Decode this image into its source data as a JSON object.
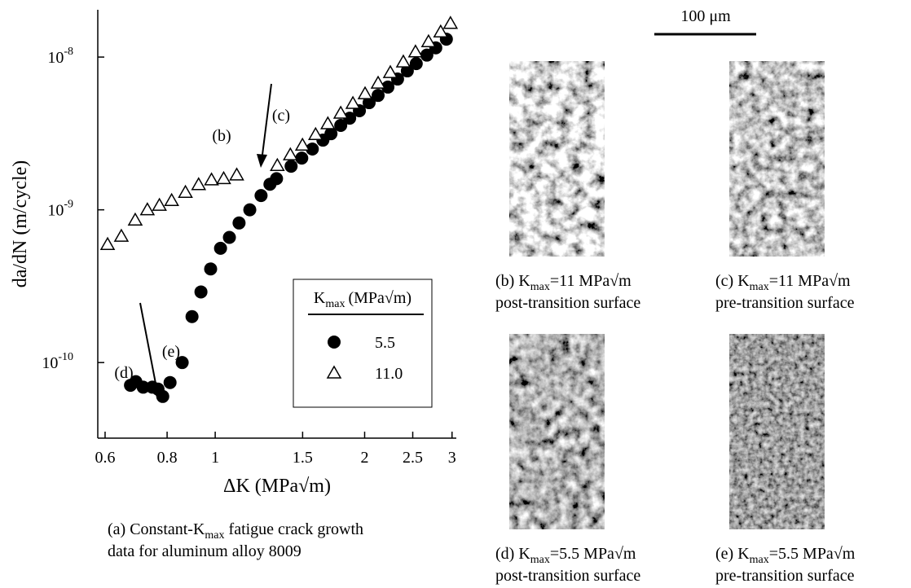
{
  "chart_data": {
    "type": "scatter",
    "xlabel": "ΔK (MPa√m)",
    "ylabel": "da/dN (m/cycle)",
    "xscale": "log",
    "yscale": "log",
    "xlim": [
      0.58,
      3.06
    ],
    "ylim": [
      3.2e-11,
      2.04e-08
    ],
    "xticks": [
      0.6,
      0.8,
      1,
      1.5,
      2,
      2.5,
      3
    ],
    "yticks": [
      {
        "value": 1e-10,
        "label": "10",
        "exponent": "-10"
      },
      {
        "value": 1e-09,
        "label": "10",
        "exponent": "-9"
      },
      {
        "value": 1e-08,
        "label": "10",
        "exponent": "-8"
      }
    ],
    "legend": {
      "title": {
        "main": "K",
        "sub": "max",
        "rest": "(MPa√m)"
      },
      "position": "lower right"
    },
    "series": [
      {
        "name": "5.5",
        "marker": "circle",
        "color": "#000000",
        "x": [
          0.675,
          0.692,
          0.716,
          0.747,
          0.767,
          0.784,
          0.811,
          0.858,
          0.898,
          0.936,
          0.979,
          1.025,
          1.068,
          1.117,
          1.174,
          1.237,
          1.289,
          1.329,
          1.422,
          1.494,
          1.569,
          1.648,
          1.711,
          1.79,
          1.866,
          1.952,
          2.042,
          2.129,
          2.228,
          2.33,
          2.438,
          2.541,
          2.669,
          2.782,
          2.922
        ],
        "values": [
          7.1e-11,
          7.5e-11,
          6.9e-11,
          6.9e-11,
          6.7e-11,
          6e-11,
          7.4e-11,
          1e-10,
          2e-10,
          2.9e-10,
          4.1e-10,
          5.6e-10,
          6.6e-10,
          8.2e-10,
          1e-09,
          1.24e-09,
          1.47e-09,
          1.6e-09,
          1.93e-09,
          2.18e-09,
          2.5e-09,
          2.86e-09,
          3.15e-09,
          3.57e-09,
          3.98e-09,
          4.45e-09,
          5.03e-09,
          5.61e-09,
          6.36e-09,
          7.18e-09,
          8.12e-09,
          9.06e-09,
          1.03e-08,
          1.15e-08,
          1.31e-08
        ]
      },
      {
        "name": "11.0",
        "marker": "triangle",
        "color": "#000000",
        "x": [
          0.607,
          0.647,
          0.69,
          0.73,
          0.772,
          0.817,
          0.871,
          0.926,
          0.983,
          1.04,
          1.105,
          1.334,
          1.417,
          1.499,
          1.593,
          1.686,
          1.79,
          1.894,
          2.004,
          2.129,
          2.253,
          2.393,
          2.532,
          2.69,
          2.846,
          2.978
        ],
        "values": [
          5.93e-10,
          6.71e-10,
          8.57e-10,
          1e-09,
          1.07e-09,
          1.15e-09,
          1.3e-09,
          1.46e-09,
          1.57e-09,
          1.6e-09,
          1.69e-09,
          1.95e-09,
          2.29e-09,
          2.65e-09,
          3.11e-09,
          3.66e-09,
          4.29e-09,
          4.97e-09,
          5.75e-09,
          6.75e-09,
          7.92e-09,
          9.29e-09,
          1.08e-08,
          1.26e-08,
          1.46e-08,
          1.66e-08
        ]
      }
    ],
    "annotations": [
      "(b)",
      "(c)",
      "(d)",
      "(e)"
    ],
    "caption": {
      "before": "(a) Constant-K",
      "sub": "max",
      "after": " fatigue crack growth",
      "line2": "data for aluminum alloy 8009"
    }
  },
  "micrographs": {
    "scale_bar": "100 μm",
    "panels": [
      {
        "label": "(b) K",
        "sub": "max",
        "rest": "=11 MPa√m",
        "line2": "post-transition surface"
      },
      {
        "label": "(c) K",
        "sub": "max",
        "rest": "=11 MPa√m",
        "line2": "pre-transition surface"
      },
      {
        "label": "(d) K",
        "sub": "max",
        "rest": "=5.5 MPa√m",
        "line2": "post-transition surface"
      },
      {
        "label": "(e) K",
        "sub": "max",
        "rest": "=5.5 MPa√m",
        "line2": "pre-transition surface"
      }
    ]
  }
}
